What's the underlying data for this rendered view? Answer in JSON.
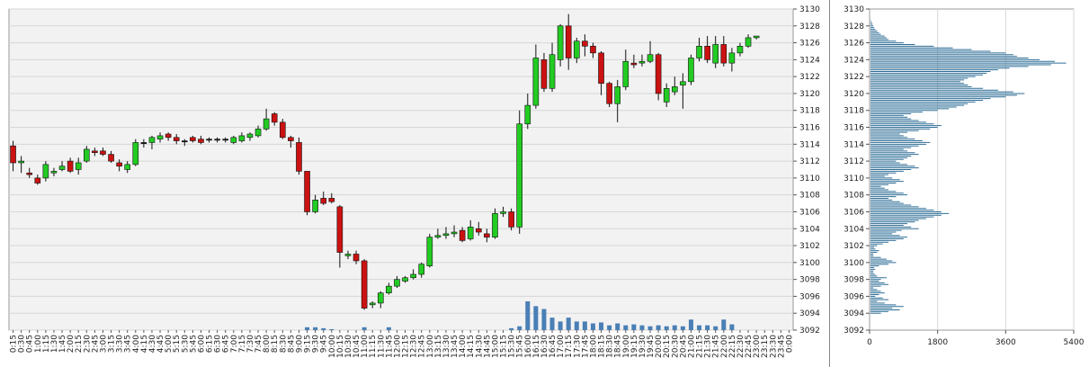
{
  "chart_data": [
    {
      "type": "candlestick",
      "title": "",
      "ylim": [
        3092,
        3130
      ],
      "y_ticks": [
        3092,
        3094,
        3096,
        3098,
        3100,
        3102,
        3104,
        3106,
        3108,
        3110,
        3112,
        3114,
        3116,
        3118,
        3120,
        3122,
        3124,
        3126,
        3128,
        3130
      ],
      "x_labels": [
        "0:15",
        "0:30",
        "0:45",
        "1:00",
        "1:15",
        "1:30",
        "1:45",
        "2:00",
        "2:15",
        "2:30",
        "2:45",
        "3:00",
        "3:15",
        "3:30",
        "3:45",
        "4:00",
        "4:15",
        "4:30",
        "4:45",
        "5:00",
        "5:15",
        "5:30",
        "5:45",
        "6:00",
        "6:15",
        "6:30",
        "6:45",
        "7:00",
        "7:15",
        "7:30",
        "7:45",
        "8:00",
        "8:15",
        "8:30",
        "8:45",
        "9:00",
        "9:15",
        "9:30",
        "9:45",
        "10:00",
        "10:15",
        "10:30",
        "10:45",
        "11:00",
        "11:15",
        "11:30",
        "11:45",
        "12:00",
        "12:15",
        "12:30",
        "12:45",
        "13:00",
        "13:15",
        "13:30",
        "13:45",
        "14:00",
        "14:15",
        "14:30",
        "14:45",
        "15:00",
        "15:15",
        "15:30",
        "15:45",
        "16:00",
        "16:15",
        "16:30",
        "16:45",
        "17:00",
        "17:15",
        "17:30",
        "17:45",
        "18:00",
        "18:15",
        "18:30",
        "18:45",
        "19:00",
        "19:15",
        "19:30",
        "19:45",
        "20:00",
        "20:15",
        "20:30",
        "20:45",
        "21:00",
        "21:15",
        "21:30",
        "21:45",
        "22:00",
        "22:15",
        "22:30",
        "22:45",
        "23:00",
        "23:15",
        "23:30",
        "23:45",
        "0:00"
      ],
      "grid": true,
      "up_color": "#22cc22",
      "down_color": "#cc1111",
      "neutral_color": "#111111",
      "candles": [
        {
          "o": 3113.8,
          "h": 3114.4,
          "l": 3110.8,
          "c": 3111.8
        },
        {
          "o": 3111.8,
          "h": 3112.6,
          "l": 3110.6,
          "c": 3112.0
        },
        {
          "o": 3110.6,
          "h": 3111.2,
          "l": 3110.0,
          "c": 3110.4
        },
        {
          "o": 3110.0,
          "h": 3110.4,
          "l": 3109.2,
          "c": 3109.4
        },
        {
          "o": 3110.0,
          "h": 3112.0,
          "l": 3109.6,
          "c": 3111.6
        },
        {
          "o": 3110.6,
          "h": 3111.2,
          "l": 3110.2,
          "c": 3110.8
        },
        {
          "o": 3111.0,
          "h": 3112.0,
          "l": 3110.8,
          "c": 3111.4
        },
        {
          "o": 3112.0,
          "h": 3112.4,
          "l": 3110.6,
          "c": 3110.8
        },
        {
          "o": 3111.0,
          "h": 3112.4,
          "l": 3110.4,
          "c": 3111.8
        },
        {
          "o": 3112.0,
          "h": 3113.8,
          "l": 3111.8,
          "c": 3113.4
        },
        {
          "o": 3113.2,
          "h": 3113.6,
          "l": 3112.6,
          "c": 3113.0
        },
        {
          "o": 3113.2,
          "h": 3113.6,
          "l": 3112.6,
          "c": 3112.8
        },
        {
          "o": 3112.8,
          "h": 3113.2,
          "l": 3111.8,
          "c": 3112.0
        },
        {
          "o": 3111.8,
          "h": 3112.2,
          "l": 3110.8,
          "c": 3111.4
        },
        {
          "o": 3111.0,
          "h": 3112.0,
          "l": 3110.6,
          "c": 3111.6
        },
        {
          "o": 3111.6,
          "h": 3114.6,
          "l": 3111.4,
          "c": 3114.2
        },
        {
          "o": 3114.2,
          "h": 3114.6,
          "l": 3113.6,
          "c": 3114.2
        },
        {
          "o": 3114.2,
          "h": 3115.0,
          "l": 3113.4,
          "c": 3114.8
        },
        {
          "o": 3114.6,
          "h": 3115.4,
          "l": 3114.2,
          "c": 3115.0
        },
        {
          "o": 3115.2,
          "h": 3115.4,
          "l": 3114.4,
          "c": 3114.8
        },
        {
          "o": 3114.8,
          "h": 3115.2,
          "l": 3114.0,
          "c": 3114.4
        },
        {
          "o": 3114.4,
          "h": 3114.6,
          "l": 3113.8,
          "c": 3114.4
        },
        {
          "o": 3114.8,
          "h": 3115.0,
          "l": 3114.2,
          "c": 3114.4
        },
        {
          "o": 3114.6,
          "h": 3115.0,
          "l": 3114.0,
          "c": 3114.2
        },
        {
          "o": 3114.6,
          "h": 3114.8,
          "l": 3114.2,
          "c": 3114.6
        },
        {
          "o": 3114.6,
          "h": 3114.8,
          "l": 3114.2,
          "c": 3114.6
        },
        {
          "o": 3114.6,
          "h": 3114.8,
          "l": 3114.2,
          "c": 3114.6
        },
        {
          "o": 3114.2,
          "h": 3115.0,
          "l": 3114.0,
          "c": 3114.8
        },
        {
          "o": 3114.4,
          "h": 3115.4,
          "l": 3114.2,
          "c": 3115.0
        },
        {
          "o": 3114.8,
          "h": 3115.4,
          "l": 3114.4,
          "c": 3115.2
        },
        {
          "o": 3115.0,
          "h": 3116.2,
          "l": 3114.8,
          "c": 3115.8
        },
        {
          "o": 3115.8,
          "h": 3118.2,
          "l": 3115.6,
          "c": 3117.0
        },
        {
          "o": 3117.6,
          "h": 3117.8,
          "l": 3116.2,
          "c": 3116.6
        },
        {
          "o": 3116.6,
          "h": 3117.0,
          "l": 3114.6,
          "c": 3114.8
        },
        {
          "o": 3114.8,
          "h": 3115.0,
          "l": 3113.6,
          "c": 3114.4
        },
        {
          "o": 3114.2,
          "h": 3114.8,
          "l": 3110.4,
          "c": 3110.8
        },
        {
          "o": 3110.8,
          "h": 3110.8,
          "l": 3105.6,
          "c": 3106.0
        },
        {
          "o": 3106.0,
          "h": 3108.0,
          "l": 3105.8,
          "c": 3107.4
        },
        {
          "o": 3107.6,
          "h": 3108.4,
          "l": 3106.8,
          "c": 3107.0
        },
        {
          "o": 3107.6,
          "h": 3108.2,
          "l": 3107.0,
          "c": 3107.2
        },
        {
          "o": 3106.6,
          "h": 3106.8,
          "l": 3099.4,
          "c": 3101.2
        },
        {
          "o": 3100.8,
          "h": 3101.4,
          "l": 3100.4,
          "c": 3101.0
        },
        {
          "o": 3101.0,
          "h": 3101.4,
          "l": 3099.8,
          "c": 3100.2
        },
        {
          "o": 3100.2,
          "h": 3100.4,
          "l": 3094.4,
          "c": 3094.6
        },
        {
          "o": 3095.0,
          "h": 3095.4,
          "l": 3094.6,
          "c": 3095.2
        },
        {
          "o": 3095.2,
          "h": 3096.6,
          "l": 3094.6,
          "c": 3096.4
        },
        {
          "o": 3096.4,
          "h": 3097.6,
          "l": 3096.2,
          "c": 3097.2
        },
        {
          "o": 3097.2,
          "h": 3098.4,
          "l": 3097.0,
          "c": 3098.0
        },
        {
          "o": 3097.8,
          "h": 3098.4,
          "l": 3097.6,
          "c": 3098.2
        },
        {
          "o": 3098.2,
          "h": 3099.2,
          "l": 3098.0,
          "c": 3098.6
        },
        {
          "o": 3098.6,
          "h": 3100.0,
          "l": 3098.2,
          "c": 3099.8
        },
        {
          "o": 3099.6,
          "h": 3103.4,
          "l": 3099.4,
          "c": 3103.0
        },
        {
          "o": 3103.0,
          "h": 3104.0,
          "l": 3102.8,
          "c": 3103.2
        },
        {
          "o": 3103.2,
          "h": 3104.2,
          "l": 3102.8,
          "c": 3103.4
        },
        {
          "o": 3103.4,
          "h": 3104.4,
          "l": 3103.0,
          "c": 3103.6
        },
        {
          "o": 3103.8,
          "h": 3104.2,
          "l": 3102.4,
          "c": 3102.6
        },
        {
          "o": 3102.8,
          "h": 3105.0,
          "l": 3102.6,
          "c": 3104.2
        },
        {
          "o": 3104.0,
          "h": 3104.8,
          "l": 3103.2,
          "c": 3103.6
        },
        {
          "o": 3103.4,
          "h": 3104.0,
          "l": 3102.4,
          "c": 3103.0
        },
        {
          "o": 3103.0,
          "h": 3106.4,
          "l": 3102.8,
          "c": 3105.8
        },
        {
          "o": 3105.8,
          "h": 3106.6,
          "l": 3105.4,
          "c": 3106.0
        },
        {
          "o": 3106.0,
          "h": 3106.4,
          "l": 3103.8,
          "c": 3104.2
        },
        {
          "o": 3104.2,
          "h": 3118.0,
          "l": 3103.4,
          "c": 3116.4
        },
        {
          "o": 3116.4,
          "h": 3120.0,
          "l": 3115.8,
          "c": 3118.6
        },
        {
          "o": 3118.6,
          "h": 3125.8,
          "l": 3118.2,
          "c": 3124.2
        },
        {
          "o": 3124.0,
          "h": 3124.8,
          "l": 3120.2,
          "c": 3120.6
        },
        {
          "o": 3120.6,
          "h": 3126.0,
          "l": 3120.2,
          "c": 3124.6
        },
        {
          "o": 3124.0,
          "h": 3128.2,
          "l": 3123.2,
          "c": 3128.0
        },
        {
          "o": 3128.0,
          "h": 3129.4,
          "l": 3122.8,
          "c": 3124.2
        },
        {
          "o": 3124.2,
          "h": 3126.6,
          "l": 3123.6,
          "c": 3126.2
        },
        {
          "o": 3126.2,
          "h": 3127.0,
          "l": 3124.4,
          "c": 3125.6
        },
        {
          "o": 3125.6,
          "h": 3126.0,
          "l": 3124.2,
          "c": 3124.8
        },
        {
          "o": 3124.8,
          "h": 3125.0,
          "l": 3119.8,
          "c": 3121.2
        },
        {
          "o": 3121.2,
          "h": 3121.4,
          "l": 3118.4,
          "c": 3118.8
        },
        {
          "o": 3118.8,
          "h": 3121.6,
          "l": 3116.6,
          "c": 3120.8
        },
        {
          "o": 3120.8,
          "h": 3125.2,
          "l": 3120.4,
          "c": 3123.8
        },
        {
          "o": 3123.6,
          "h": 3124.6,
          "l": 3123.0,
          "c": 3123.4
        },
        {
          "o": 3123.6,
          "h": 3124.6,
          "l": 3123.2,
          "c": 3123.8
        },
        {
          "o": 3123.8,
          "h": 3126.2,
          "l": 3123.6,
          "c": 3124.6
        },
        {
          "o": 3124.6,
          "h": 3124.8,
          "l": 3119.2,
          "c": 3120.0
        },
        {
          "o": 3119.0,
          "h": 3121.2,
          "l": 3118.4,
          "c": 3120.6
        },
        {
          "o": 3120.2,
          "h": 3122.0,
          "l": 3119.8,
          "c": 3120.8
        },
        {
          "o": 3121.0,
          "h": 3122.4,
          "l": 3118.2,
          "c": 3121.4
        },
        {
          "o": 3121.4,
          "h": 3124.6,
          "l": 3121.0,
          "c": 3124.2
        },
        {
          "o": 3124.2,
          "h": 3126.6,
          "l": 3123.8,
          "c": 3125.6
        },
        {
          "o": 3125.6,
          "h": 3126.8,
          "l": 3123.6,
          "c": 3124.0
        },
        {
          "o": 3123.6,
          "h": 3126.8,
          "l": 3123.0,
          "c": 3125.8
        },
        {
          "o": 3125.8,
          "h": 3126.8,
          "l": 3123.2,
          "c": 3123.6
        },
        {
          "o": 3123.6,
          "h": 3125.4,
          "l": 3122.6,
          "c": 3124.8
        },
        {
          "o": 3124.8,
          "h": 3126.0,
          "l": 3124.4,
          "c": 3125.6
        },
        {
          "o": 3125.6,
          "h": 3127.0,
          "l": 3125.4,
          "c": 3126.6
        },
        {
          "o": 3126.6,
          "h": 3126.8,
          "l": 3126.4,
          "c": 3126.8
        }
      ],
      "volume_color": "#4a7fb5",
      "volumes": [
        0,
        0,
        0,
        0,
        0,
        0,
        0,
        0,
        0,
        0,
        0,
        0,
        0,
        0,
        0,
        0,
        0,
        0,
        0,
        0,
        0,
        0,
        0,
        0,
        0,
        0,
        0,
        0,
        0,
        0,
        0,
        0,
        0,
        0,
        0,
        0,
        3,
        3,
        2,
        1,
        0,
        0,
        0,
        3,
        0,
        0,
        3,
        0,
        0,
        0,
        0,
        0,
        0,
        0,
        0,
        0,
        0,
        0,
        0,
        0,
        0,
        2,
        4,
        30,
        25,
        22,
        13,
        9,
        13,
        9,
        9,
        7,
        8,
        5,
        7,
        5,
        6,
        5,
        4,
        5,
        4,
        5,
        4,
        11,
        5,
        5,
        4,
        11,
        6,
        0,
        0,
        0,
        0,
        0,
        0,
        0
      ]
    },
    {
      "type": "bar",
      "orientation": "horizontal",
      "title": "",
      "xlim": [
        0,
        5400
      ],
      "x_ticks": [
        0,
        1800,
        3600,
        5400
      ],
      "y_ticks": [
        3092,
        3094,
        3096,
        3098,
        3100,
        3102,
        3104,
        3106,
        3108,
        3110,
        3112,
        3114,
        3116,
        3118,
        3120,
        3122,
        3124,
        3126,
        3128,
        3130
      ],
      "bar_color": "#2e6e96",
      "price_levels": [
        3094.0,
        3094.2,
        3094.4,
        3094.6,
        3094.8,
        3095.0,
        3095.2,
        3095.4,
        3095.6,
        3095.8,
        3096.0,
        3096.2,
        3096.4,
        3096.6,
        3096.8,
        3097.0,
        3097.2,
        3097.4,
        3097.6,
        3097.8,
        3098.0,
        3098.2,
        3098.4,
        3098.6,
        3098.8,
        3099.0,
        3099.2,
        3099.4,
        3099.6,
        3099.8,
        3100.0,
        3100.2,
        3100.4,
        3100.6,
        3100.8,
        3101.0,
        3101.2,
        3101.4,
        3101.6,
        3101.8,
        3102.0,
        3102.2,
        3102.4,
        3102.6,
        3102.8,
        3103.0,
        3103.2,
        3103.4,
        3103.6,
        3103.8,
        3104.0,
        3104.2,
        3104.4,
        3104.6,
        3104.8,
        3105.0,
        3105.2,
        3105.4,
        3105.6,
        3105.8,
        3106.0,
        3106.2,
        3106.4,
        3106.6,
        3106.8,
        3107.0,
        3107.2,
        3107.4,
        3107.6,
        3107.8,
        3108.0,
        3108.2,
        3108.4,
        3108.6,
        3108.8,
        3109.0,
        3109.2,
        3109.4,
        3109.6,
        3109.8,
        3110.0,
        3110.2,
        3110.4,
        3110.6,
        3110.8,
        3111.0,
        3111.2,
        3111.4,
        3111.6,
        3111.8,
        3112.0,
        3112.2,
        3112.4,
        3112.6,
        3112.8,
        3113.0,
        3113.2,
        3113.4,
        3113.6,
        3113.8,
        3114.0,
        3114.2,
        3114.4,
        3114.6,
        3114.8,
        3115.0,
        3115.2,
        3115.4,
        3115.6,
        3115.8,
        3116.0,
        3116.2,
        3116.4,
        3116.6,
        3116.8,
        3117.0,
        3117.2,
        3117.4,
        3117.6,
        3117.8,
        3118.0,
        3118.2,
        3118.4,
        3118.6,
        3118.8,
        3119.0,
        3119.2,
        3119.4,
        3119.6,
        3119.8,
        3120.0,
        3120.2,
        3120.4,
        3120.6,
        3120.8,
        3121.0,
        3121.2,
        3121.4,
        3121.6,
        3121.8,
        3122.0,
        3122.2,
        3122.4,
        3122.6,
        3122.8,
        3123.0,
        3123.2,
        3123.4,
        3123.6,
        3123.8,
        3124.0,
        3124.2,
        3124.4,
        3124.6,
        3124.8,
        3125.0,
        3125.2,
        3125.4,
        3125.6,
        3125.8,
        3126.0,
        3126.2,
        3126.4,
        3126.6,
        3126.8,
        3127.0,
        3127.2,
        3127.4,
        3127.6,
        3127.8,
        3128.0,
        3128.2,
        3128.4,
        3128.6,
        3128.8,
        3129.0,
        3129.2,
        3129.4
      ],
      "values": [
        300,
        500,
        800,
        600,
        900,
        700,
        400,
        200,
        500,
        350,
        150,
        250,
        400,
        300,
        200,
        100,
        300,
        500,
        400,
        250,
        300,
        450,
        200,
        150,
        100,
        100,
        150,
        120,
        250,
        500,
        700,
        600,
        450,
        300,
        100,
        100,
        200,
        250,
        150,
        120,
        200,
        350,
        500,
        700,
        900,
        1000,
        800,
        600,
        700,
        850,
        1300,
        1100,
        900,
        1000,
        1200,
        1300,
        1500,
        1700,
        1900,
        2100,
        1900,
        1700,
        1500,
        1300,
        1100,
        900,
        800,
        600,
        500,
        700,
        1000,
        900,
        700,
        500,
        400,
        300,
        500,
        700,
        900,
        800,
        600,
        400,
        500,
        700,
        900,
        1100,
        1300,
        1200,
        1000,
        800,
        700,
        900,
        1000,
        1100,
        1300,
        1200,
        1000,
        900,
        1100,
        1300,
        1500,
        1600,
        1400,
        1200,
        1000,
        900,
        800,
        1000,
        1300,
        1600,
        1800,
        1900,
        1700,
        1500,
        1300,
        1100,
        1000,
        900,
        1100,
        1400,
        1800,
        2100,
        2300,
        2500,
        2600,
        2800,
        3000,
        3200,
        3600,
        3900,
        4100,
        3800,
        3400,
        3000,
        2700,
        2600,
        2500,
        2400,
        2500,
        2600,
        2800,
        3000,
        3100,
        3200,
        3400,
        3700,
        4200,
        4800,
        5200,
        4900,
        4500,
        4200,
        3900,
        3800,
        3600,
        3200,
        2700,
        2200,
        1700,
        1200,
        900,
        700,
        500,
        450,
        400,
        300,
        250,
        200,
        150,
        120,
        100,
        80,
        60,
        40
      ]
    }
  ]
}
